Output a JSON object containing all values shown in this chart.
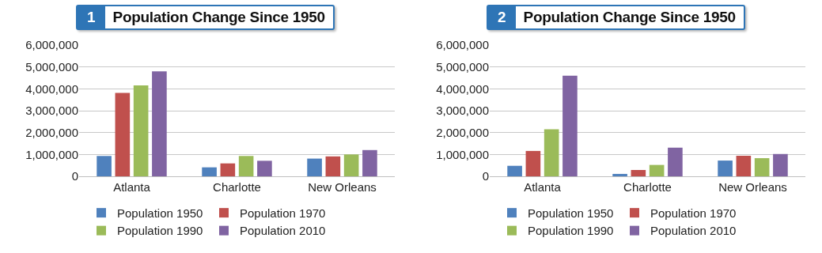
{
  "chart_data": [
    {
      "type": "bar",
      "title": "Population Change Since 1950",
      "annotations": [
        "1"
      ],
      "categories": [
        "Atlanta",
        "Charlotte",
        "New Orleans"
      ],
      "series": [
        {
          "name": "Population 1950",
          "color": "#4f81bd",
          "values": [
            930000,
            410000,
            810000
          ]
        },
        {
          "name": "Population 1970",
          "color": "#c0504d",
          "values": [
            3810000,
            590000,
            910000
          ]
        },
        {
          "name": "Population 1990",
          "color": "#9bbb59",
          "values": [
            4160000,
            930000,
            1000000
          ]
        },
        {
          "name": "Population 2010",
          "color": "#8064a2",
          "values": [
            4800000,
            710000,
            1200000
          ]
        }
      ],
      "ylim": [
        0,
        6000000
      ],
      "yticks": [
        {
          "value": 0,
          "label": "0"
        },
        {
          "value": 1000000,
          "label": "1,000,000"
        },
        {
          "value": 2000000,
          "label": "2,000,000"
        },
        {
          "value": 3000000,
          "label": "3,000,000"
        },
        {
          "value": 4000000,
          "label": "4,000,000"
        },
        {
          "value": 5000000,
          "label": "5,000,000"
        },
        {
          "value": 6000000,
          "label": "6,000,000"
        }
      ],
      "grid": "y",
      "legend": "bottom"
    },
    {
      "type": "bar",
      "title": "Population Change Since 1950",
      "annotations": [
        "2"
      ],
      "categories": [
        "Atlanta",
        "Charlotte",
        "New Orleans"
      ],
      "series": [
        {
          "name": "Population 1950",
          "color": "#4f81bd",
          "values": [
            480000,
            110000,
            720000
          ]
        },
        {
          "name": "Population 1970",
          "color": "#c0504d",
          "values": [
            1160000,
            290000,
            940000
          ]
        },
        {
          "name": "Population 1990",
          "color": "#9bbb59",
          "values": [
            2150000,
            520000,
            830000
          ]
        },
        {
          "name": "Population 2010",
          "color": "#8064a2",
          "values": [
            4600000,
            1310000,
            1020000
          ]
        }
      ],
      "ylim": [
        0,
        6000000
      ],
      "yticks": [
        {
          "value": 0,
          "label": "0"
        },
        {
          "value": 1000000,
          "label": "1,000,000"
        },
        {
          "value": 2000000,
          "label": "2,000,000"
        },
        {
          "value": 3000000,
          "label": "3,000,000"
        },
        {
          "value": 4000000,
          "label": "4,000,000"
        },
        {
          "value": 5000000,
          "label": "5,000,000"
        },
        {
          "value": 6000000,
          "label": "6,000,000"
        }
      ],
      "grid": "y",
      "legend": "bottom"
    }
  ]
}
